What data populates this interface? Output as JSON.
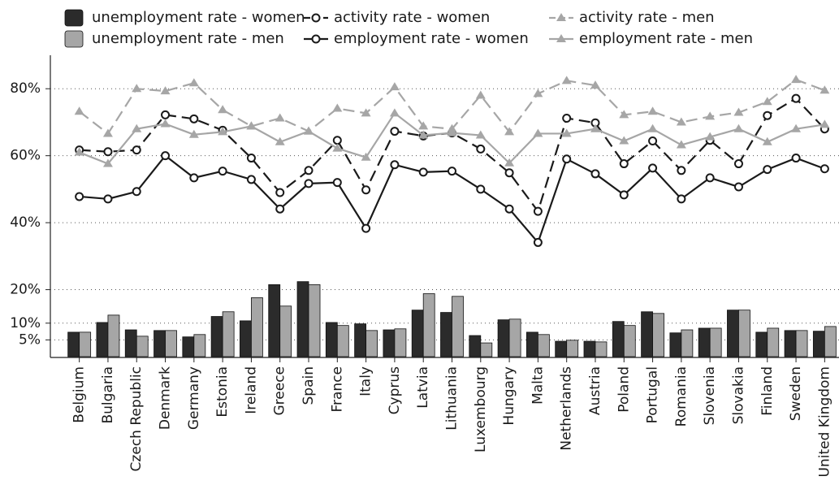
{
  "chart_data": {
    "type": "combo",
    "categories": [
      "Belgium",
      "Bulgaria",
      "Czech Republic",
      "Denmark",
      "Germany",
      "Estonia",
      "Ireland",
      "Greece",
      "Spain",
      "France",
      "Italy",
      "Cyprus",
      "Latvia",
      "Lithuania",
      "Luxembourg",
      "Hungary",
      "Malta",
      "Netherlands",
      "Austria",
      "Poland",
      "Portugal",
      "Romania",
      "Slovenia",
      "Slovakia",
      "Finland",
      "Sweden",
      "United Kingdom"
    ],
    "series": [
      {
        "name": "unemployment rate - women",
        "type": "bar",
        "color": "#2b2b2b",
        "values": [
          7.3,
          10.2,
          8,
          7.8,
          5.9,
          12,
          10.7,
          21.5,
          22.4,
          10.2,
          9.8,
          8,
          13.9,
          13.2,
          6.3,
          11,
          7.3,
          4.6,
          4.6,
          10.5,
          13.4,
          7.1,
          8.5,
          13.9,
          7.3,
          7.8,
          7.6
        ]
      },
      {
        "name": "unemployment rate - men",
        "type": "bar",
        "color": "#a6a6a6",
        "values": [
          7.3,
          12.4,
          6.1,
          7.8,
          6.6,
          13.4,
          17.6,
          15.1,
          21.5,
          9.3,
          7.8,
          8.3,
          18.8,
          18,
          4.1,
          11.2,
          6.6,
          4.9,
          4.4,
          9.3,
          12.9,
          8,
          8.5,
          13.9,
          8.5,
          7.8,
          9
        ]
      },
      {
        "name": "activity rate - women",
        "type": "line",
        "color": "#1a1a1a",
        "dash": true,
        "marker": "circle",
        "values": [
          61.7,
          61.2,
          61.7,
          72.2,
          71,
          67.6,
          59.3,
          49,
          55.6,
          64.6,
          49.8,
          67.3,
          65.9,
          66.8,
          62,
          54.9,
          43.4,
          71.2,
          69.8,
          57.6,
          64.4,
          55.6,
          64.6,
          57.6,
          72,
          77.1,
          68
        ]
      },
      {
        "name": "employment rate - women",
        "type": "line",
        "color": "#1a1a1a",
        "dash": false,
        "marker": "circle",
        "values": [
          47.8,
          47.1,
          49.3,
          60,
          53.4,
          55.4,
          52.9,
          44.1,
          51.7,
          52,
          38.3,
          57.3,
          55.1,
          55.4,
          50,
          44.1,
          34.1,
          59,
          54.6,
          48.3,
          56.3,
          47.1,
          53.4,
          50.7,
          55.9,
          59.3,
          56.1
        ]
      },
      {
        "name": "activity rate - men",
        "type": "line",
        "color": "#a6a6a6",
        "dash": true,
        "marker": "triangle",
        "values": [
          73.2,
          66.6,
          80,
          79.3,
          81.7,
          73.7,
          68.8,
          71.2,
          67.3,
          74.1,
          72.7,
          80.5,
          68.8,
          68,
          78,
          67.1,
          78.5,
          82.4,
          81,
          72.2,
          73.2,
          70,
          71.7,
          72.9,
          76.1,
          82.7,
          79.5
        ]
      },
      {
        "name": "employment rate - men",
        "type": "line",
        "color": "#a6a6a6",
        "dash": false,
        "marker": "triangle",
        "values": [
          61,
          57.6,
          68,
          69.5,
          66.3,
          67.1,
          68.8,
          64.1,
          67.3,
          62.2,
          59.5,
          72.7,
          66.1,
          66.8,
          66.1,
          57.8,
          66.6,
          66.6,
          68,
          64.4,
          68,
          63.2,
          65.6,
          68,
          64.1,
          68,
          69.3
        ]
      }
    ],
    "ylim": [
      0,
      90
    ],
    "yticks": [
      {
        "value": 5,
        "label": "5%"
      },
      {
        "value": 10,
        "label": "10%"
      },
      {
        "value": 20,
        "label": "20%"
      },
      {
        "value": 40,
        "label": "40%"
      },
      {
        "value": 60,
        "label": "60%"
      },
      {
        "value": 80,
        "label": "80%"
      }
    ],
    "grid": true
  }
}
